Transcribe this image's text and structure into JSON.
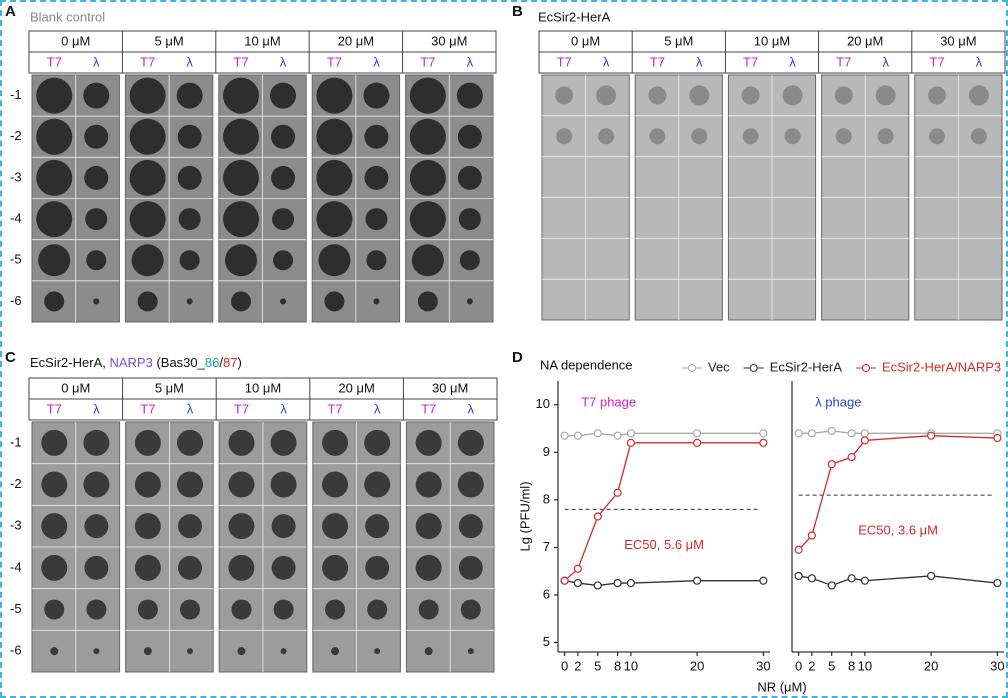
{
  "panels": [
    {
      "label": "A",
      "title": "Blank control",
      "concentrations": [
        "0 μM",
        "5 μM",
        "10 μM",
        "20 μM",
        "30 μM"
      ],
      "phages": [
        "T7",
        "λ"
      ],
      "dilutions": [
        "-1",
        "-2",
        "-3",
        "-4",
        "-5",
        "-6"
      ]
    },
    {
      "label": "B",
      "title": "EcSir2-HerA",
      "concentrations": [
        "0 μM",
        "5 μM",
        "10 μM",
        "20 μM",
        "30 μM"
      ],
      "phages": [
        "T7",
        "λ"
      ]
    },
    {
      "label": "C",
      "title_parts": [
        "EcSir2-HerA, ",
        "NARP3",
        " (Bas30_",
        "86",
        "/",
        "87",
        ")"
      ],
      "concentrations": [
        "0 μM",
        "5 μM",
        "10 μM",
        "20 μM",
        "30 μM"
      ],
      "phages": [
        "T7",
        "λ"
      ],
      "dilutions": [
        "-1",
        "-2",
        "-3",
        "-4",
        "-5",
        "-6"
      ]
    }
  ],
  "panel_d_label": "D",
  "chart_data": [
    {
      "type": "line",
      "title": "NA dependence",
      "ylabel": "Lg (PFU/ml)",
      "xlabel": "NR (μM)",
      "annotation": "EC50, 5.6 μM",
      "phage_label": "T7 phage",
      "phage_color": "#cc22cc",
      "x": [
        0,
        2,
        5,
        8,
        10,
        20,
        30
      ],
      "xlim": [
        -1,
        31
      ],
      "ylim": [
        4.8,
        10.5
      ],
      "xticks": [
        0,
        2,
        5,
        8,
        10,
        20,
        30
      ],
      "yticks": [
        5,
        6,
        7,
        8,
        9,
        10
      ],
      "reference_line": 7.8,
      "series": [
        {
          "name": "Vec",
          "color": "#aaaaaa",
          "values": [
            9.35,
            9.35,
            9.4,
            9.35,
            9.4,
            9.4,
            9.4
          ]
        },
        {
          "name": "EcSir2-HerA",
          "color": "#333333",
          "values": [
            6.3,
            6.25,
            6.2,
            6.25,
            6.25,
            6.3,
            6.3
          ]
        },
        {
          "name": "EcSir2-HerA/NARP3",
          "color": "#d42a2a",
          "values": [
            6.3,
            6.55,
            7.65,
            8.15,
            9.2,
            9.2,
            9.2
          ]
        }
      ]
    },
    {
      "type": "line",
      "annotation": "EC50, 3.6 μM",
      "phage_label": "λ phage",
      "phage_color": "#2244cc",
      "x": [
        0,
        2,
        5,
        8,
        10,
        20,
        30
      ],
      "xlim": [
        -1,
        31
      ],
      "ylim": [
        4.8,
        10.5
      ],
      "xticks": [
        0,
        2,
        5,
        8,
        10,
        20,
        30
      ],
      "reference_line": 8.1,
      "series": [
        {
          "color": "#aaaaaa",
          "values": [
            9.4,
            9.4,
            9.45,
            9.4,
            9.4,
            9.4,
            9.4
          ]
        },
        {
          "color": "#333333",
          "values": [
            6.4,
            6.35,
            6.2,
            6.35,
            6.3,
            6.4,
            6.25
          ]
        },
        {
          "color": "#d42a2a",
          "values": [
            6.95,
            7.25,
            8.75,
            8.9,
            9.25,
            9.35,
            9.3
          ]
        }
      ]
    }
  ]
}
